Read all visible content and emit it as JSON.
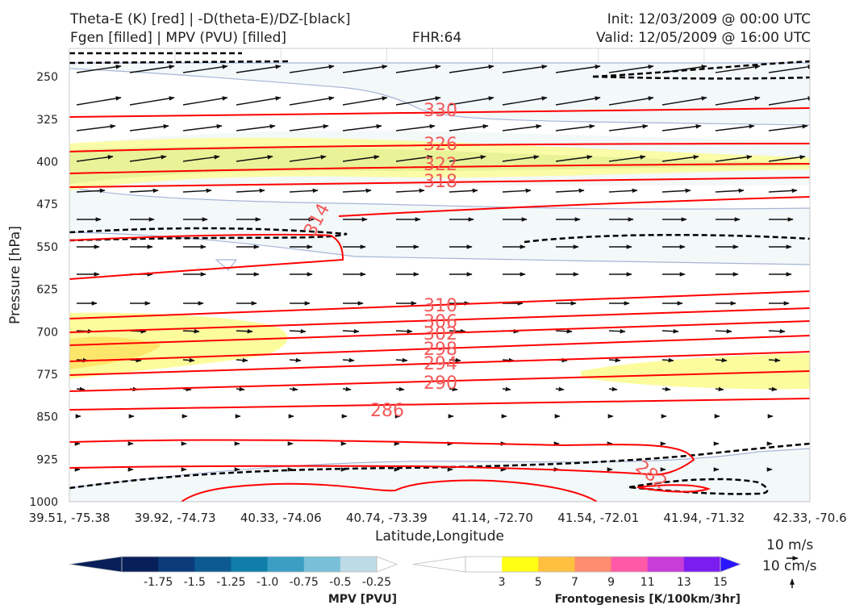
{
  "header": {
    "title_line1": "Theta-E (K) [red] | -D(theta-E)/DZ-[black]",
    "title_line2": "Fgen [filled] | MPV (PVU) [filled]",
    "fhr": "FHR:64",
    "init": "Init: 12/03/2009 @ 00:00 UTC",
    "valid": "Valid: 12/05/2009 @ 16:00 UTC"
  },
  "chart_data": {
    "type": "cross-section",
    "xlabel": "Latitude,Longitude",
    "ylabel": "Pressure [hPa]",
    "x_ticks": [
      "39.51, -75.38",
      "39.92, -74.73",
      "40.33, -74.06",
      "40.74, -73.39",
      "41.14, -72.70",
      "41.54, -72.01",
      "41.94, -71.32",
      "42.33, -70.6"
    ],
    "y_ticks": [
      250,
      325,
      400,
      475,
      550,
      625,
      700,
      775,
      850,
      925,
      1000
    ],
    "ylim": [
      1000,
      200
    ],
    "y_scale": "linear, inverted",
    "grid": true,
    "theta_e_contours": [
      {
        "label": "330",
        "color": "#ff0000"
      },
      {
        "label": "326",
        "color": "#ff0000"
      },
      {
        "label": "322",
        "color": "#ff0000"
      },
      {
        "label": "318",
        "color": "#ff0000"
      },
      {
        "label": "314",
        "color": "#ff0000"
      },
      {
        "label": "310",
        "color": "#ff0000"
      },
      {
        "label": "306",
        "color": "#ff0000"
      },
      {
        "label": "302",
        "color": "#ff0000"
      },
      {
        "label": "298",
        "color": "#ff0000"
      },
      {
        "label": "294",
        "color": "#ff0000"
      },
      {
        "label": "290",
        "color": "#ff0000"
      },
      {
        "label": "286",
        "color": "#ff0000"
      },
      {
        "label": "282",
        "color": "#ff0000"
      }
    ],
    "dthetae_dz_color": "#000000",
    "mpv_colorbar": {
      "label": "MPV [PVU]",
      "ticks": [
        "-1.75",
        "-1.5",
        "-1.25",
        "-1.0",
        "-0.75",
        "-0.5",
        "-0.25"
      ],
      "colors": [
        "#08205a",
        "#0b3a78",
        "#0c5a91",
        "#0f7ea8",
        "#3a9fc3",
        "#79bfd7",
        "#bddbe6",
        "#ffffff"
      ]
    },
    "fgen_colorbar": {
      "label": "Frontogenesis [K/100km/3hr]",
      "ticks": [
        "3",
        "5",
        "7",
        "9",
        "11",
        "13",
        "15"
      ],
      "colors": [
        "#ffffff",
        "#ffff14",
        "#ffc040",
        "#ff8c6e",
        "#ff5aa8",
        "#c83cd8",
        "#7b1cf0",
        "#2a14ff"
      ]
    },
    "wind_reference": {
      "horizontal": "10 m/s",
      "vertical": "10 cm/s"
    }
  }
}
